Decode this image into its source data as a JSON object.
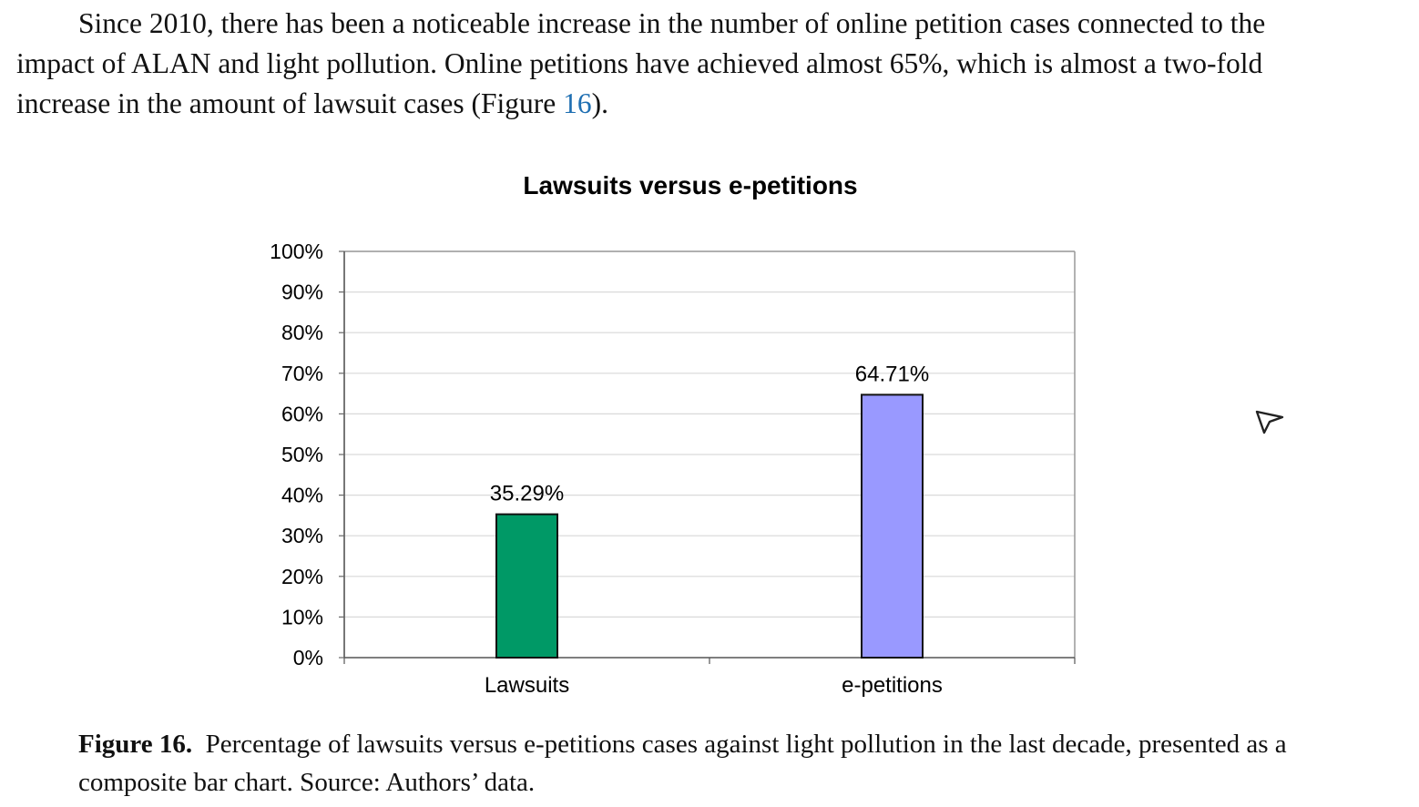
{
  "paragraph": {
    "text_before": "Since 2010, there has been a noticeable increase in the number of online petition cases connected to the impact of ALAN and light pollution. Online petitions have achieved almost 65%, which is almost a two-fold increase in the amount of lawsuit cases (Figure ",
    "figure_ref": "16",
    "text_after": ")."
  },
  "chart_data": {
    "type": "bar",
    "title": "Lawsuits versus e-petitions",
    "categories": [
      "Lawsuits",
      "e-petitions"
    ],
    "values": [
      35.29,
      64.71
    ],
    "data_labels": [
      "35.29%",
      "64.71%"
    ],
    "colors": [
      "#009966",
      "#9999ff"
    ],
    "y_ticks": [
      "0%",
      "10%",
      "20%",
      "30%",
      "40%",
      "50%",
      "60%",
      "70%",
      "80%",
      "90%",
      "100%"
    ],
    "ylim": [
      0,
      100
    ],
    "xlabel": "",
    "ylabel": "",
    "grid": true
  },
  "caption": {
    "label": "Figure 16.",
    "text": "Percentage of lawsuits versus e-petitions cases against light pollution in the last decade, presented as a composite bar chart. Source: Authors’ data."
  },
  "icons": {
    "cursor": "pointer-arrow-icon"
  }
}
